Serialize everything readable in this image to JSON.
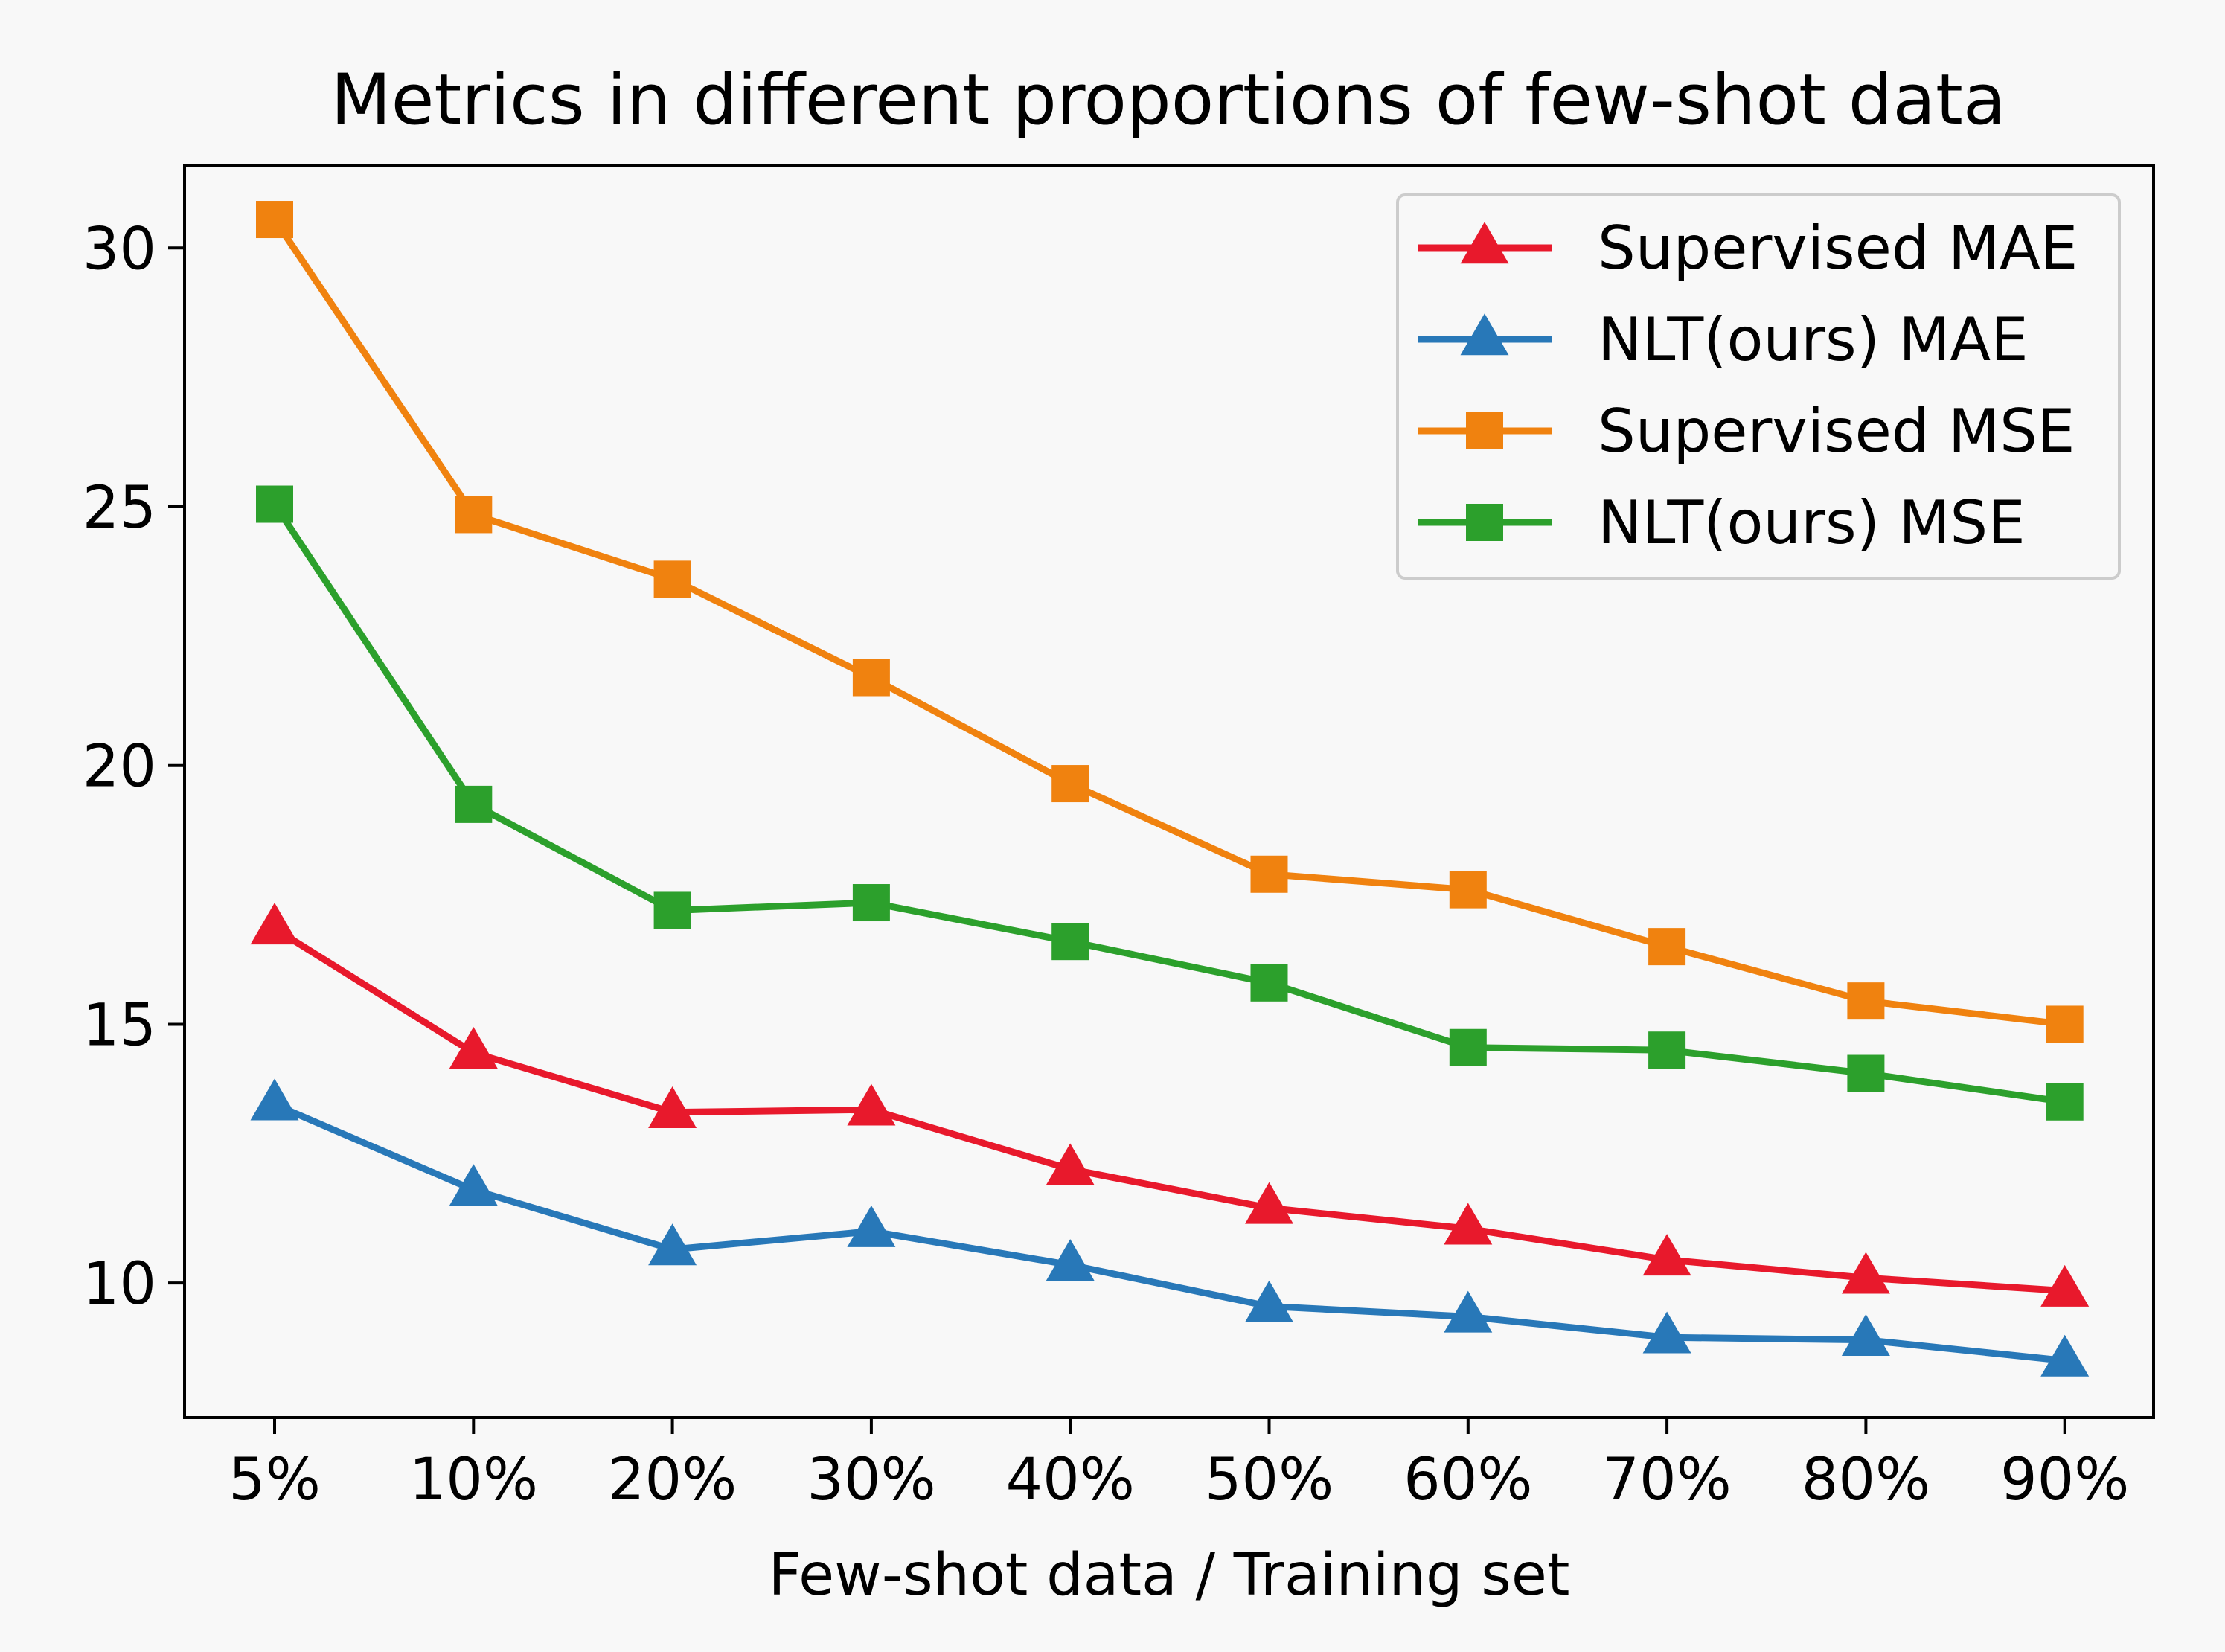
{
  "chart_data": {
    "type": "line",
    "title": "Metrics in different proportions of few-shot data",
    "xlabel": "Few-shot data / Training set",
    "ylabel": "",
    "categories": [
      "5%",
      "10%",
      "20%",
      "30%",
      "40%",
      "50%",
      "60%",
      "70%",
      "80%",
      "90%"
    ],
    "ylim": [
      7.4,
      31.6
    ],
    "yticks": [
      10,
      15,
      20,
      25,
      30
    ],
    "grid": false,
    "legend_position": "top-right",
    "series": [
      {
        "name": "Supervised MAE",
        "color": "#e8192c",
        "marker": "triangle",
        "values": [
          16.85,
          14.45,
          13.3,
          13.35,
          12.2,
          11.45,
          11.05,
          10.45,
          10.1,
          9.85
        ]
      },
      {
        "name": "NLT(ours) MAE",
        "color": "#2878b8",
        "marker": "triangle",
        "values": [
          13.45,
          11.8,
          10.65,
          11.0,
          10.35,
          9.55,
          9.35,
          8.95,
          8.9,
          8.5
        ]
      },
      {
        "name": "Supervised MSE",
        "color": "#f0820f",
        "marker": "square",
        "values": [
          30.55,
          24.85,
          23.6,
          21.7,
          19.65,
          17.9,
          17.6,
          16.5,
          15.45,
          15.0
        ]
      },
      {
        "name": "NLT(ours) MSE",
        "color": "#2ca02c",
        "marker": "square",
        "values": [
          25.05,
          19.25,
          17.2,
          17.35,
          16.6,
          15.8,
          14.55,
          14.5,
          14.05,
          13.5
        ]
      }
    ]
  }
}
